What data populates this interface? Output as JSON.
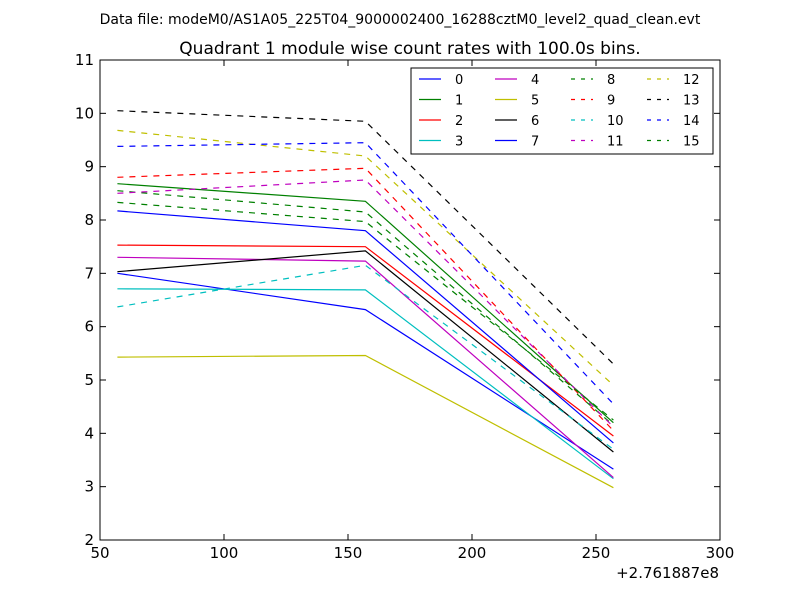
{
  "header": {
    "data_file": "Data file: modeM0/AS1A05_225T04_9000002400_16288cztM0_level2_quad_clean.evt"
  },
  "chart_data": {
    "type": "line",
    "title": "Quadrant 1 module wise count rates with 100.0s bins.",
    "xlabel": "",
    "ylabel": "",
    "xlim": [
      50,
      300
    ],
    "ylim": [
      2,
      11
    ],
    "x_offset_label": "+2.761887e8",
    "x_ticks": [
      "50",
      "100",
      "150",
      "200",
      "250",
      "300"
    ],
    "y_ticks": [
      "2",
      "3",
      "4",
      "5",
      "6",
      "7",
      "8",
      "9",
      "10",
      "11"
    ],
    "grid": false,
    "legend_position": "top-right",
    "x": [
      57,
      157,
      257
    ],
    "series": [
      {
        "name": "0",
        "values": [
          7.0,
          6.32,
          3.33
        ],
        "color": "#0000ff",
        "style": "solid"
      },
      {
        "name": "1",
        "values": [
          8.68,
          8.35,
          4.2
        ],
        "color": "#008000",
        "style": "solid"
      },
      {
        "name": "2",
        "values": [
          7.53,
          7.5,
          3.95
        ],
        "color": "#ff0000",
        "style": "solid"
      },
      {
        "name": "3",
        "values": [
          6.71,
          6.69,
          3.15
        ],
        "color": "#00bfbf",
        "style": "solid"
      },
      {
        "name": "4",
        "values": [
          7.3,
          7.23,
          3.17
        ],
        "color": "#bf00bf",
        "style": "solid"
      },
      {
        "name": "5",
        "values": [
          5.43,
          5.46,
          2.98
        ],
        "color": "#bfbf00",
        "style": "solid"
      },
      {
        "name": "6",
        "values": [
          7.03,
          7.42,
          3.65
        ],
        "color": "#000000",
        "style": "solid"
      },
      {
        "name": "7",
        "values": [
          8.17,
          7.8,
          3.82
        ],
        "color": "#0000ff",
        "style": "solid"
      },
      {
        "name": "8",
        "values": [
          8.55,
          8.15,
          4.15
        ],
        "color": "#008000",
        "style": "dashed"
      },
      {
        "name": "9",
        "values": [
          8.8,
          8.97,
          4.05
        ],
        "color": "#ff0000",
        "style": "dashed"
      },
      {
        "name": "10",
        "values": [
          6.37,
          7.15,
          3.7
        ],
        "color": "#00bfbf",
        "style": "dashed"
      },
      {
        "name": "11",
        "values": [
          8.5,
          8.75,
          4.12
        ],
        "color": "#bf00bf",
        "style": "dashed"
      },
      {
        "name": "12",
        "values": [
          9.68,
          9.2,
          4.9
        ],
        "color": "#bfbf00",
        "style": "dashed"
      },
      {
        "name": "13",
        "values": [
          10.05,
          9.85,
          5.3
        ],
        "color": "#000000",
        "style": "dashed"
      },
      {
        "name": "14",
        "values": [
          9.38,
          9.45,
          4.55
        ],
        "color": "#0000ff",
        "style": "dashed"
      },
      {
        "name": "15",
        "values": [
          8.33,
          7.97,
          4.25
        ],
        "color": "#008000",
        "style": "dashed"
      }
    ]
  }
}
